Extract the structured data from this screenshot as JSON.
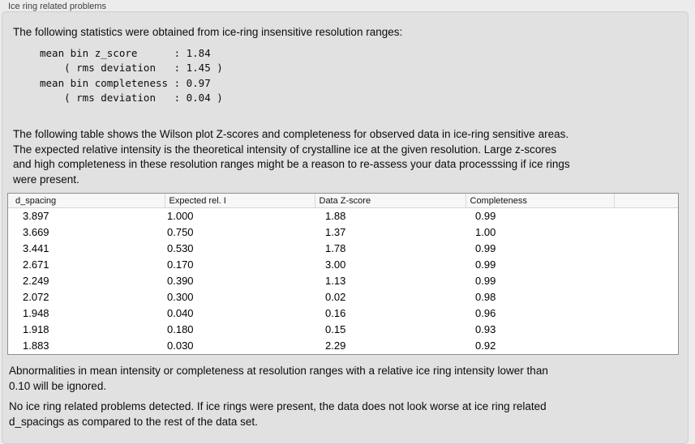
{
  "panel": {
    "title": "Ice ring related problems"
  },
  "stats_section": {
    "intro": "The following statistics were obtained from ice-ring insensitive resolution ranges:",
    "stats_text": "mean bin z_score      : 1.84\n    ( rms deviation   : 1.45 )\nmean bin completeness : 0.97\n    ( rms deviation   : 0.04 )",
    "values": {
      "mean_bin_z_score": "1.84",
      "z_score_rms_deviation": "1.45",
      "mean_bin_completeness": "0.97",
      "completeness_rms_deviation": "0.04"
    }
  },
  "table_section": {
    "description": "The following table shows the Wilson plot Z-scores and completeness for observed data in ice-ring sensitive areas.\nThe expected relative intensity is the theoretical intensity of crystalline ice at the given resolution. Large z-scores\nand high completeness in these resolution ranges might be a reason to re-assess your data processsing if ice rings\nwere present.",
    "table": {
      "columns": [
        "d_spacing",
        "Expected rel. I",
        "Data Z-score",
        "Completeness"
      ],
      "rows": [
        [
          "3.897",
          "1.000",
          "1.88",
          "0.99"
        ],
        [
          "3.669",
          "0.750",
          "1.37",
          "1.00"
        ],
        [
          "3.441",
          "0.530",
          "1.78",
          "0.99"
        ],
        [
          "2.671",
          "0.170",
          "3.00",
          "0.99"
        ],
        [
          "2.249",
          "0.390",
          "1.13",
          "0.99"
        ],
        [
          "2.072",
          "0.300",
          "0.02",
          "0.98"
        ],
        [
          "1.948",
          "0.040",
          "0.16",
          "0.96"
        ],
        [
          "1.918",
          "0.180",
          "0.15",
          "0.93"
        ],
        [
          "1.883",
          "0.030",
          "2.29",
          "0.92"
        ]
      ]
    }
  },
  "footnotes": {
    "ignore_note": "Abnormalities in mean intensity or completeness at resolution ranges with a relative ice ring intensity lower than\n0.10 will be ignored.",
    "conclusion": "No ice ring related problems detected. If ice rings were present, the data does not look worse at ice ring related\nd_spacings as compared to the rest of the data set."
  },
  "colors": {
    "outer_bg": "#ececec",
    "panel_bg": "#e1e1e1",
    "table_border": "#8f8f8f",
    "header_bg": "#f7f7f7"
  }
}
